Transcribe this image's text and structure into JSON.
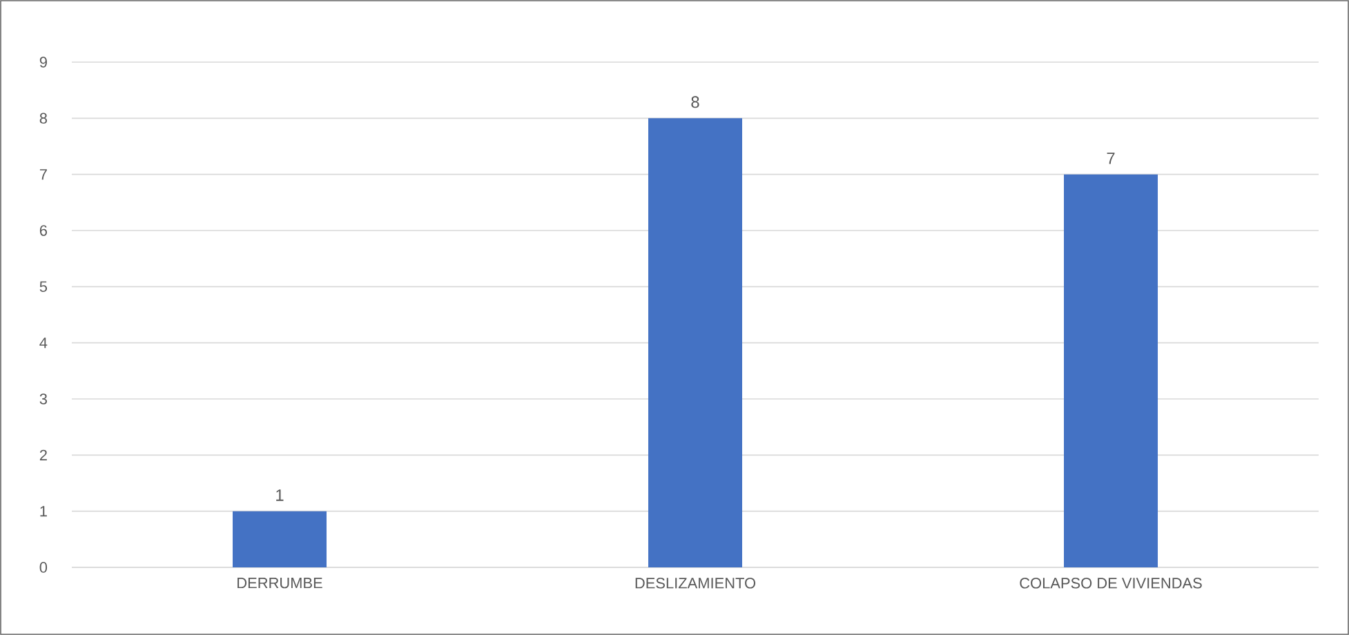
{
  "chart_data": {
    "type": "bar",
    "categories": [
      "DERRUMBE",
      "DESLIZAMIENTO",
      "COLAPSO DE VIVIENDAS"
    ],
    "values": [
      1,
      8,
      7
    ],
    "color": "#4472c4",
    "ylim": [
      0,
      9
    ],
    "yticks": [
      0,
      1,
      2,
      3,
      4,
      5,
      6,
      7,
      8,
      9
    ],
    "grid": "y",
    "data_labels": true
  }
}
